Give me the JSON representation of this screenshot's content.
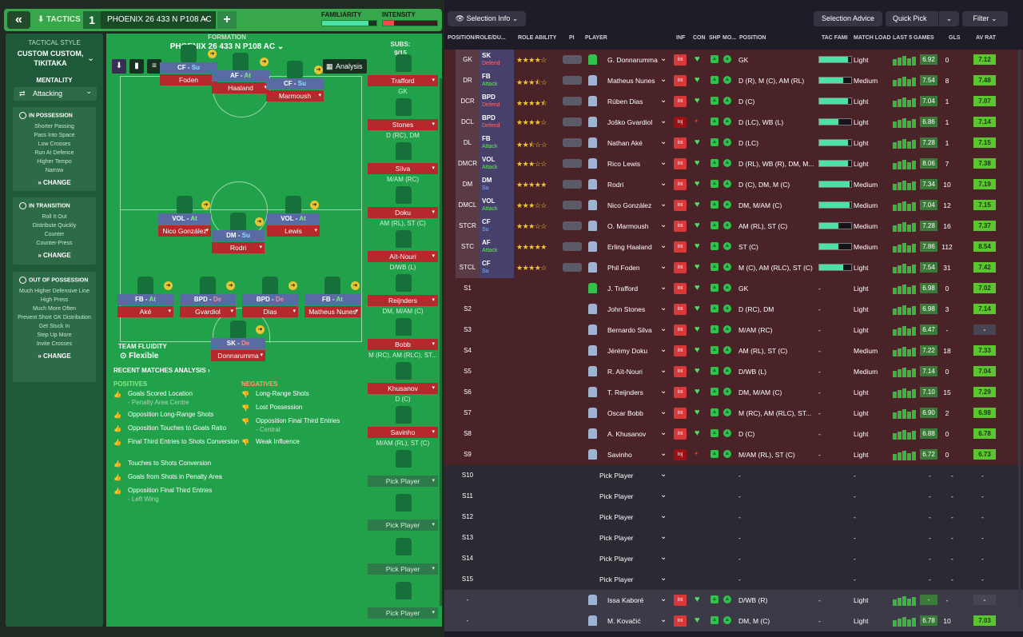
{
  "topbar": {
    "back": "«",
    "tactics": "TACTICS",
    "slot": "1",
    "tactic_name": "PHOENIX 26 433 N P108 AC",
    "plus": "+",
    "familiarity": "FAMILIARITY",
    "intensity": "INTENSITY",
    "familiarity_level": 0.85,
    "intensity_level": 0.2
  },
  "sidebar": {
    "style_label": "TACTICAL STYLE",
    "style": "CUSTOM CUSTOM, TIKITAKA",
    "mentality_label": "MENTALITY",
    "mentality": "Attacking",
    "in_possession": {
      "title": "IN POSSESSION",
      "items": [
        "Shorter Passing",
        "Pass Into Space",
        "Low Crosses",
        "Run At Defence",
        "Higher Tempo",
        "Narrow"
      ],
      "change": "CHANGE"
    },
    "in_transition": {
      "title": "IN TRANSITION",
      "items": [
        "Roll It Out",
        "Distribute Quickly",
        "Counter",
        "Counter-Press"
      ],
      "change": "CHANGE"
    },
    "out_possession": {
      "title": "OUT OF POSSESSION",
      "items": [
        "Much Higher Defensive Line",
        "High Press",
        "Much More Often",
        "Prevent Short GK Distribution",
        "Get Stuck In",
        "Step Up More",
        "Invite Crosses"
      ],
      "change": "CHANGE"
    }
  },
  "formation": {
    "label": "FORMATION",
    "name": "PHOENIX 26 433 N P108 AC",
    "analysis": "Analysis",
    "subs_label": "SUBS:",
    "subs_count": "9/15",
    "players": [
      {
        "role": "CF",
        "duty": "Su",
        "name": "Foden"
      },
      {
        "role": "AF",
        "duty": "At",
        "name": "Haaland"
      },
      {
        "role": "CF",
        "duty": "Su",
        "name": "Marmoush"
      },
      {
        "role": "VOL",
        "duty": "At",
        "name": "Nico González"
      },
      {
        "role": "DM",
        "duty": "Su",
        "name": "Rodri"
      },
      {
        "role": "VOL",
        "duty": "At",
        "name": "Lewis"
      },
      {
        "role": "FB",
        "duty": "At",
        "name": "Aké"
      },
      {
        "role": "BPD",
        "duty": "De",
        "name": "Gvardiol"
      },
      {
        "role": "BPD",
        "duty": "De",
        "name": "Dias"
      },
      {
        "role": "FB",
        "duty": "At",
        "name": "Matheus Nunes"
      },
      {
        "role": "SK",
        "duty": "De",
        "name": "Donnarumma"
      }
    ],
    "team_fluidity": "TEAM FLUIDITY",
    "fluidity": "Flexible",
    "subs": [
      {
        "name": "Trafford",
        "pos": "GK"
      },
      {
        "name": "Stones",
        "pos": "D (RC), DM"
      },
      {
        "name": "Silva",
        "pos": "M/AM (RC)"
      },
      {
        "name": "Doku",
        "pos": "AM (RL), ST (C)"
      },
      {
        "name": "Aït-Nouri",
        "pos": "D/WB (L)"
      },
      {
        "name": "Reijnders",
        "pos": "DM, M/AM (C)"
      },
      {
        "name": "Bobb",
        "pos": "M (RC), AM (RLC), ST..."
      },
      {
        "name": "Khusanov",
        "pos": "D (C)"
      },
      {
        "name": "Savinho",
        "pos": "M/AM (RL), ST (C)"
      }
    ],
    "pick": "Pick Player"
  },
  "analysis": {
    "title": "RECENT MATCHES ANALYSIS ›",
    "positives_label": "POSITIVES",
    "negatives_label": "NEGATIVES",
    "positives": [
      {
        "t": "Goals Scored Location",
        "s": "- Penalty Area Centre"
      },
      {
        "t": "Opposition Long-Range Shots",
        "s": ""
      },
      {
        "t": "Opposition Touches to Goals Ratio",
        "s": ""
      },
      {
        "t": "Final Third Entries to Shots Conversion",
        "s": ""
      },
      {
        "t": "Touches to Shots Conversion",
        "s": ""
      },
      {
        "t": "Goals from Shots in Penalty Area",
        "s": ""
      },
      {
        "t": "Opposition Final Third Entries",
        "s": "- Left Wing"
      }
    ],
    "negatives": [
      {
        "t": "Long-Range Shots",
        "s": ""
      },
      {
        "t": "Lost Possession",
        "s": ""
      },
      {
        "t": "Opposition Final Third Entries",
        "s": "- Central"
      },
      {
        "t": "Weak Influence",
        "s": ""
      }
    ]
  },
  "right": {
    "selection_info": "Selection Info",
    "selection_advice": "Selection Advice",
    "quick_pick": "Quick Pick",
    "filter": "Filter",
    "headers": [
      "POSITION/ROLE/DU...",
      "ROLE ABILITY",
      "PI",
      "PLAYER",
      "INF",
      "CON",
      "SHP",
      "MO...",
      "POSITION",
      "TAC FAMI",
      "MATCH LOAD",
      "LAST 5 GAMES",
      "GLS",
      "AV RAT"
    ],
    "rows": [
      {
        "pc": "GK",
        "role": "SK",
        "duty": "Defend",
        "stars": 4,
        "name": "G. Donnarumma",
        "pos": "GK",
        "tf": 0.9,
        "ml": "Light",
        "rt": "6.92",
        "gl": "0",
        "ar": "7.12",
        "gk": true
      },
      {
        "pc": "DR",
        "role": "FB",
        "duty": "Attack",
        "stars": 3.5,
        "name": "Matheus Nunes",
        "pos": "D (R), M (C), AM (RL)",
        "tf": 0.75,
        "ml": "Medium",
        "rt": "7.54",
        "gl": "8",
        "ar": "7.48"
      },
      {
        "pc": "DCR",
        "role": "BPD",
        "duty": "Defend",
        "stars": 4.5,
        "name": "Rúben Dias",
        "pos": "D (C)",
        "tf": 0.9,
        "ml": "Light",
        "rt": "7.04",
        "gl": "1",
        "ar": "7.07"
      },
      {
        "pc": "DCL",
        "role": "BPD",
        "duty": "Defend",
        "stars": 4,
        "name": "Joško Gvardiol",
        "pos": "D (LC), WB (L)",
        "tf": 0.6,
        "ml": "Light",
        "rt": "6.86",
        "gl": "1",
        "ar": "7.14"
      },
      {
        "pc": "DL",
        "role": "FB",
        "duty": "Attack",
        "stars": 2.5,
        "name": "Nathan Aké",
        "pos": "D (LC)",
        "tf": 0.9,
        "ml": "Light",
        "rt": "7.28",
        "gl": "1",
        "ar": "7.15"
      },
      {
        "pc": "DMCR",
        "role": "VOL",
        "duty": "Attack",
        "stars": 3,
        "name": "Rico Lewis",
        "pos": "D (RL), WB (R), DM, M...",
        "tf": 0.9,
        "ml": "Light",
        "rt": "8.06",
        "gl": "7",
        "ar": "7.38"
      },
      {
        "pc": "DM",
        "role": "DM",
        "duty": "Su",
        "stars": 5,
        "name": "Rodri",
        "pos": "D (C), DM, M (C)",
        "tf": 0.95,
        "ml": "Medium",
        "rt": "7.34",
        "gl": "10",
        "ar": "7.19"
      },
      {
        "pc": "DMCL",
        "role": "VOL",
        "duty": "Attack",
        "stars": 3,
        "name": "Nico González",
        "pos": "DM, M/AM (C)",
        "tf": 0.95,
        "ml": "Medium",
        "rt": "7.04",
        "gl": "12",
        "ar": "7.15"
      },
      {
        "pc": "STCR",
        "role": "CF",
        "duty": "Su",
        "stars": 3,
        "name": "O. Marmoush",
        "pos": "AM (RL), ST (C)",
        "tf": 0.6,
        "ml": "Medium",
        "rt": "7.28",
        "gl": "16",
        "ar": "7.37"
      },
      {
        "pc": "STC",
        "role": "AF",
        "duty": "Attack",
        "stars": 5,
        "name": "Erling Haaland",
        "pos": "ST (C)",
        "tf": 0.6,
        "ml": "Medium",
        "rt": "7.86",
        "gl": "112",
        "ar": "8.54"
      },
      {
        "pc": "STCL",
        "role": "CF",
        "duty": "Su",
        "stars": 4,
        "name": "Phil Foden",
        "pos": "M (C), AM (RLC), ST (C)",
        "tf": 0.75,
        "ml": "Light",
        "rt": "7.54",
        "gl": "31",
        "ar": "7.42"
      },
      {
        "pc": "S1",
        "name": "J. Trafford",
        "pos": "GK",
        "ml": "Light",
        "rt": "6.98",
        "gl": "0",
        "ar": "7.02",
        "gk": true
      },
      {
        "pc": "S2",
        "name": "John Stones",
        "pos": "D (RC), DM",
        "ml": "Light",
        "rt": "6.98",
        "gl": "3",
        "ar": "7.14"
      },
      {
        "pc": "S3",
        "name": "Bernardo Silva",
        "pos": "M/AM (RC)",
        "ml": "Light",
        "rt": "6.47",
        "gl": "-",
        "ar": "-"
      },
      {
        "pc": "S4",
        "name": "Jérémy Doku",
        "pos": "AM (RL), ST (C)",
        "ml": "Medium",
        "rt": "7.22",
        "gl": "18",
        "ar": "7.33"
      },
      {
        "pc": "S5",
        "name": "R. Aït-Nouri",
        "pos": "D/WB (L)",
        "ml": "Medium",
        "rt": "7.14",
        "gl": "0",
        "ar": "7.04"
      },
      {
        "pc": "S6",
        "name": "T. Reijnders",
        "pos": "DM, M/AM (C)",
        "ml": "Light",
        "rt": "7.10",
        "gl": "15",
        "ar": "7.29"
      },
      {
        "pc": "S7",
        "name": "Oscar Bobb",
        "pos": "M (RC), AM (RLC), ST...",
        "ml": "Light",
        "rt": "6.90",
        "gl": "2",
        "ar": "6.98"
      },
      {
        "pc": "S8",
        "name": "A. Khusanov",
        "pos": "D (C)",
        "ml": "Light",
        "rt": "6.88",
        "gl": "0",
        "ar": "6.78"
      },
      {
        "pc": "S9",
        "name": "Savinho",
        "pos": "M/AM (RL), ST (C)",
        "ml": "Light",
        "rt": "6.72",
        "gl": "0",
        "ar": "6.73"
      },
      {
        "pc": "S10"
      },
      {
        "pc": "S11"
      },
      {
        "pc": "S12"
      },
      {
        "pc": "S13"
      },
      {
        "pc": "S14"
      },
      {
        "pc": "S15"
      },
      {
        "pc": "-",
        "name": "Issa Kaboré",
        "pos": "D/WB (R)",
        "ml": "Light",
        "rt": "-",
        "gl": "-",
        "ar": "-"
      },
      {
        "pc": "-",
        "name": "M. Kovačić",
        "pos": "DM, M (C)",
        "ml": "Light",
        "rt": "6.78",
        "gl": "10",
        "ar": "7.03"
      }
    ],
    "pick": "Pick Player",
    "dash": "-"
  }
}
